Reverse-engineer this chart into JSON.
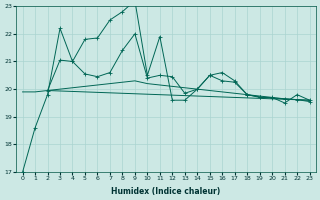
{
  "xlabel": "Humidex (Indice chaleur)",
  "bg_color": "#cce8e4",
  "grid_color": "#aad4d0",
  "line_color": "#006655",
  "xlim": [
    -0.5,
    23.5
  ],
  "ylim": [
    17,
    23
  ],
  "yticks": [
    17,
    18,
    19,
    20,
    21,
    22,
    23
  ],
  "xticks": [
    0,
    1,
    2,
    3,
    4,
    5,
    6,
    7,
    8,
    9,
    10,
    11,
    12,
    13,
    14,
    15,
    16,
    17,
    18,
    19,
    20,
    21,
    22,
    23
  ],
  "curve1_x": [
    0,
    1,
    2,
    3,
    4,
    5,
    6,
    7,
    8,
    9,
    10,
    11,
    12,
    13,
    14,
    15,
    16,
    17,
    18,
    19,
    20,
    21,
    22,
    23
  ],
  "curve1_y": [
    17.0,
    18.6,
    19.8,
    22.2,
    21.0,
    21.8,
    21.85,
    22.5,
    22.8,
    23.2,
    20.5,
    21.9,
    19.6,
    19.6,
    20.0,
    20.5,
    20.6,
    20.3,
    19.8,
    19.7,
    19.7,
    19.5,
    19.8,
    19.6
  ],
  "curve2_x": [
    0,
    1,
    2,
    3,
    4,
    5,
    6,
    7,
    8,
    9,
    10,
    11,
    12,
    13,
    14,
    15,
    16,
    17,
    18,
    19,
    20,
    21,
    22,
    23
  ],
  "curve2_y": [
    19.9,
    19.9,
    19.95,
    20.0,
    20.05,
    20.1,
    20.15,
    20.2,
    20.25,
    20.3,
    20.2,
    20.15,
    20.1,
    20.05,
    20.0,
    19.95,
    19.9,
    19.85,
    19.8,
    19.75,
    19.7,
    19.65,
    19.62,
    19.6
  ],
  "curve3_x": [
    2,
    3,
    4,
    5,
    6,
    7,
    8,
    9,
    10,
    11,
    12,
    13,
    14,
    15,
    16,
    17,
    18,
    19,
    20,
    21,
    22,
    23
  ],
  "curve3_y": [
    19.95,
    21.05,
    21.0,
    20.55,
    20.45,
    20.6,
    21.4,
    22.0,
    20.4,
    20.5,
    20.45,
    19.85,
    20.0,
    20.5,
    20.3,
    20.25,
    19.8,
    19.72,
    19.68,
    19.65,
    19.62,
    19.55
  ],
  "curve4_x": [
    2,
    23
  ],
  "curve4_y": [
    19.95,
    19.6
  ]
}
